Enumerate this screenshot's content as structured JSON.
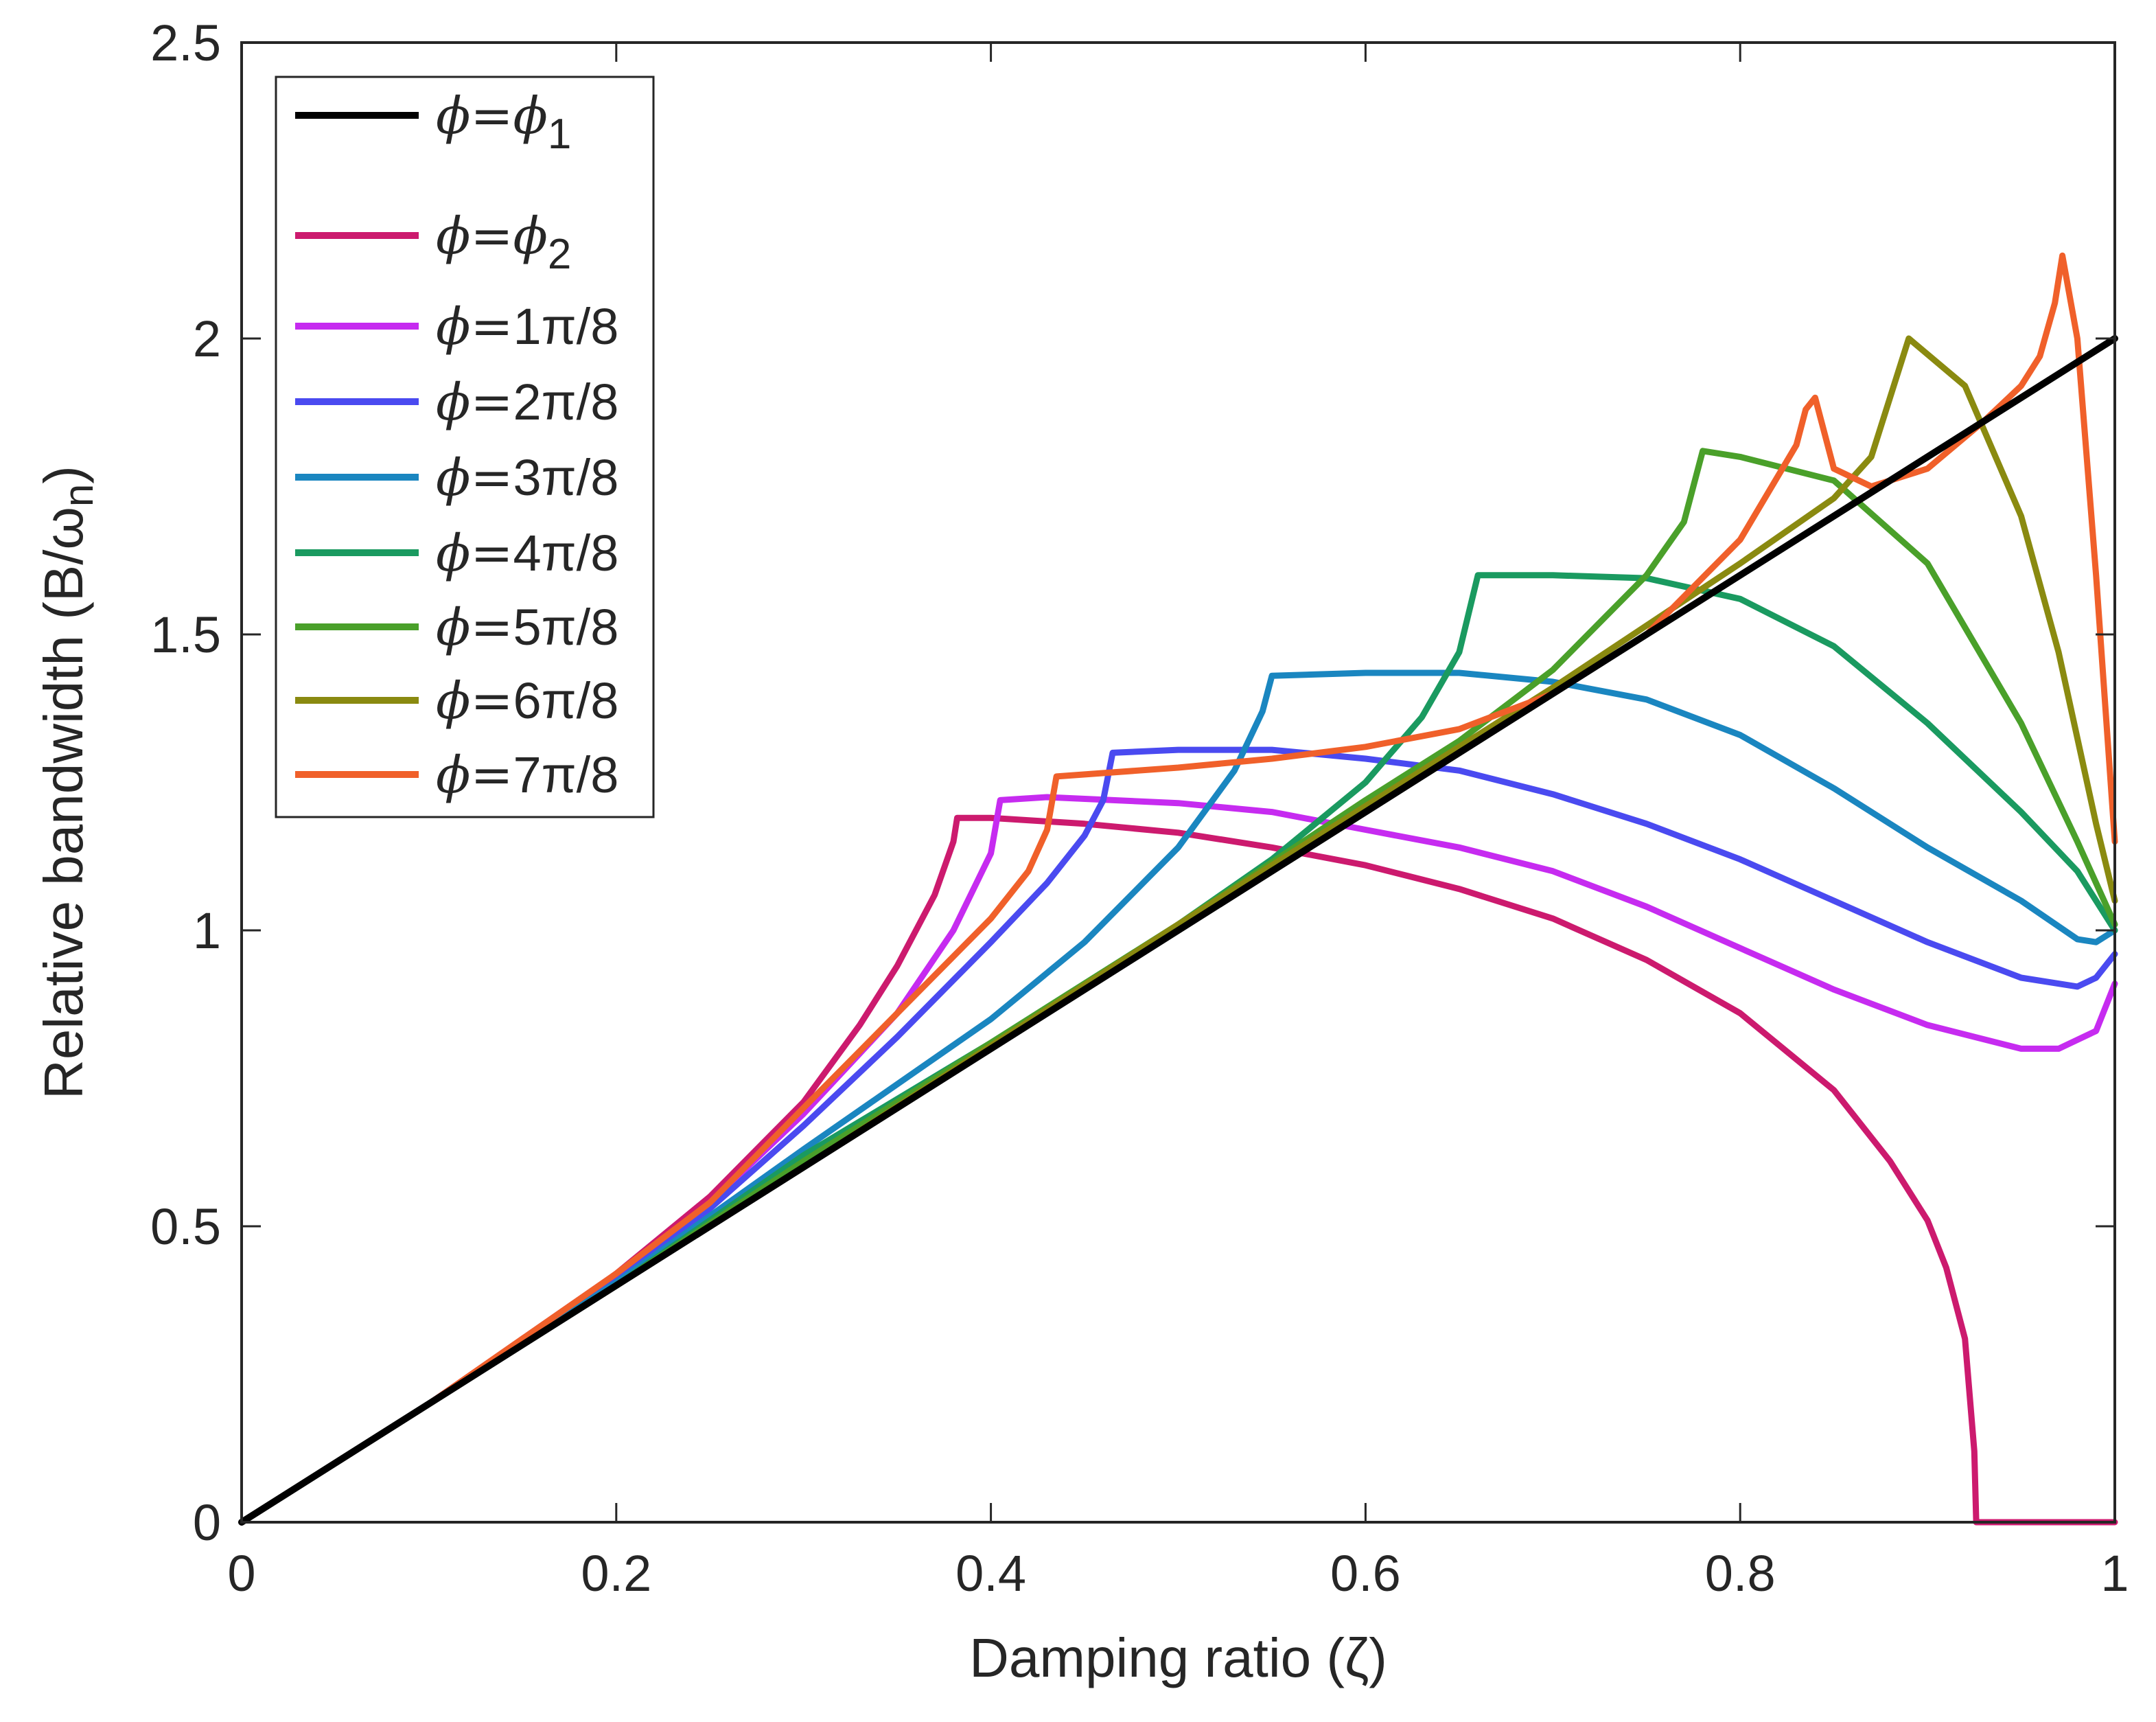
{
  "chart_data": {
    "type": "line",
    "title": "",
    "xlabel": "Damping ratio (ζ)",
    "ylabel": "Relative bandwidth (B/ω",
    "ylabel_subscript": "n",
    "ylabel_suffix": ")",
    "xlim": [
      0,
      1
    ],
    "ylim": [
      0,
      2.5
    ],
    "xticks": [
      0,
      0.2,
      0.4,
      0.6,
      0.8,
      1
    ],
    "xtick_labels": [
      "0",
      "0.2",
      "0.4",
      "0.6",
      "0.8",
      "1"
    ],
    "yticks": [
      0,
      0.5,
      1,
      1.5,
      2,
      2.5
    ],
    "ytick_labels": [
      "0",
      "0.5",
      "1",
      "1.5",
      "2",
      "2.5"
    ],
    "grid": false,
    "legend_position": "top-left",
    "series": [
      {
        "name": "phi1",
        "label_prefix": "ϕ=",
        "label_symbol": "ϕ",
        "label_subscript": "1",
        "label_text": "",
        "color": "#000000",
        "x": [
          0,
          1
        ],
        "y": [
          0,
          2
        ]
      },
      {
        "name": "phi2",
        "label_prefix": "ϕ=",
        "label_symbol": "ϕ",
        "label_subscript": "2",
        "label_text": "",
        "color": "#CC1A6E",
        "x": [
          0,
          0.1,
          0.2,
          0.25,
          0.3,
          0.33,
          0.35,
          0.37,
          0.38,
          0.382,
          0.4,
          0.45,
          0.5,
          0.55,
          0.6,
          0.65,
          0.7,
          0.75,
          0.8,
          0.85,
          0.88,
          0.9,
          0.91,
          0.92,
          0.925,
          0.926,
          0.95,
          1
        ],
        "y": [
          0,
          0.2,
          0.42,
          0.55,
          0.71,
          0.84,
          0.94,
          1.06,
          1.15,
          1.19,
          1.19,
          1.18,
          1.165,
          1.14,
          1.11,
          1.07,
          1.02,
          0.95,
          0.86,
          0.73,
          0.61,
          0.51,
          0.43,
          0.31,
          0.12,
          0,
          0,
          0
        ]
      },
      {
        "name": "phi-1pi8",
        "label_prefix": "ϕ=",
        "label_symbol": "",
        "label_subscript": "",
        "label_text": "1π/8",
        "color": "#C62BF0",
        "x": [
          0,
          0.1,
          0.2,
          0.25,
          0.3,
          0.35,
          0.38,
          0.4,
          0.405,
          0.43,
          0.5,
          0.55,
          0.6,
          0.65,
          0.7,
          0.75,
          0.8,
          0.85,
          0.9,
          0.95,
          0.97,
          0.99,
          1
        ],
        "y": [
          0,
          0.2,
          0.415,
          0.54,
          0.69,
          0.86,
          1.0,
          1.13,
          1.22,
          1.225,
          1.215,
          1.2,
          1.17,
          1.14,
          1.1,
          1.04,
          0.97,
          0.9,
          0.84,
          0.8,
          0.8,
          0.83,
          0.91
        ]
      },
      {
        "name": "phi-2pi8",
        "label_prefix": "ϕ=",
        "label_symbol": "",
        "label_subscript": "",
        "label_text": "2π/8",
        "color": "#4A4AF0",
        "x": [
          0,
          0.1,
          0.2,
          0.25,
          0.3,
          0.35,
          0.4,
          0.43,
          0.45,
          0.46,
          0.465,
          0.5,
          0.55,
          0.6,
          0.65,
          0.7,
          0.75,
          0.8,
          0.85,
          0.9,
          0.95,
          0.98,
          0.99,
          1
        ],
        "y": [
          0,
          0.2,
          0.41,
          0.53,
          0.67,
          0.82,
          0.98,
          1.08,
          1.16,
          1.22,
          1.3,
          1.305,
          1.305,
          1.29,
          1.27,
          1.23,
          1.18,
          1.12,
          1.05,
          0.98,
          0.92,
          0.905,
          0.92,
          0.96
        ]
      },
      {
        "name": "phi-3pi8",
        "label_prefix": "ϕ=",
        "label_symbol": "",
        "label_subscript": "",
        "label_text": "3π/8",
        "color": "#1A86C0",
        "x": [
          0,
          0.1,
          0.2,
          0.3,
          0.35,
          0.4,
          0.45,
          0.5,
          0.53,
          0.545,
          0.55,
          0.6,
          0.65,
          0.7,
          0.75,
          0.8,
          0.85,
          0.9,
          0.95,
          0.98,
          0.99,
          1
        ],
        "y": [
          0,
          0.2,
          0.405,
          0.63,
          0.74,
          0.85,
          0.98,
          1.14,
          1.27,
          1.37,
          1.43,
          1.435,
          1.435,
          1.42,
          1.39,
          1.33,
          1.24,
          1.14,
          1.05,
          0.985,
          0.98,
          1.0
        ]
      },
      {
        "name": "phi-4pi8",
        "label_prefix": "ϕ=",
        "label_symbol": "",
        "label_subscript": "",
        "label_text": "4π/8",
        "color": "#1A9A60",
        "x": [
          0,
          0.1,
          0.2,
          0.3,
          0.4,
          0.45,
          0.5,
          0.55,
          0.6,
          0.63,
          0.65,
          0.66,
          0.7,
          0.75,
          0.8,
          0.85,
          0.9,
          0.95,
          0.98,
          1
        ],
        "y": [
          0,
          0.2,
          0.4,
          0.62,
          0.81,
          0.91,
          1.01,
          1.12,
          1.25,
          1.36,
          1.47,
          1.6,
          1.6,
          1.595,
          1.56,
          1.48,
          1.35,
          1.2,
          1.1,
          1.0
        ]
      },
      {
        "name": "phi-5pi8",
        "label_prefix": "ϕ=",
        "label_symbol": "",
        "label_subscript": "",
        "label_text": "5π/8",
        "color": "#4AA02A",
        "x": [
          0,
          0.1,
          0.2,
          0.3,
          0.4,
          0.5,
          0.6,
          0.65,
          0.7,
          0.75,
          0.77,
          0.78,
          0.8,
          0.85,
          0.9,
          0.95,
          0.98,
          1
        ],
        "y": [
          0,
          0.2,
          0.4,
          0.61,
          0.81,
          1.01,
          1.22,
          1.32,
          1.44,
          1.6,
          1.69,
          1.81,
          1.8,
          1.76,
          1.62,
          1.35,
          1.15,
          1.01
        ]
      },
      {
        "name": "phi-6pi8",
        "label_prefix": "ϕ=",
        "label_symbol": "",
        "label_subscript": "",
        "label_text": "6π/8",
        "color": "#8A8A10",
        "x": [
          0,
          0.1,
          0.2,
          0.3,
          0.4,
          0.5,
          0.6,
          0.7,
          0.8,
          0.85,
          0.87,
          0.88,
          0.89,
          0.92,
          0.95,
          0.97,
          0.99,
          1
        ],
        "y": [
          0,
          0.2,
          0.4,
          0.6,
          0.805,
          1.01,
          1.21,
          1.41,
          1.62,
          1.73,
          1.8,
          1.9,
          2.0,
          1.92,
          1.7,
          1.47,
          1.18,
          1.05
        ]
      },
      {
        "name": "phi-7pi8",
        "label_prefix": "ϕ=",
        "label_symbol": "",
        "label_subscript": "",
        "label_text": "7π/8",
        "color": "#F0602A",
        "x": [
          0,
          0.1,
          0.2,
          0.25,
          0.3,
          0.35,
          0.4,
          0.42,
          0.43,
          0.435,
          0.5,
          0.55,
          0.6,
          0.65,
          0.7,
          0.75,
          0.8,
          0.83,
          0.835,
          0.84,
          0.85,
          0.87,
          0.9,
          0.93,
          0.95,
          0.96,
          0.968,
          0.972,
          0.98,
          0.99,
          1
        ],
        "y": [
          0,
          0.2,
          0.42,
          0.54,
          0.7,
          0.86,
          1.02,
          1.1,
          1.17,
          1.26,
          1.275,
          1.29,
          1.31,
          1.34,
          1.4,
          1.5,
          1.66,
          1.82,
          1.88,
          1.9,
          1.78,
          1.75,
          1.78,
          1.86,
          1.92,
          1.97,
          2.06,
          2.14,
          2.0,
          1.6,
          1.15
        ]
      }
    ]
  }
}
